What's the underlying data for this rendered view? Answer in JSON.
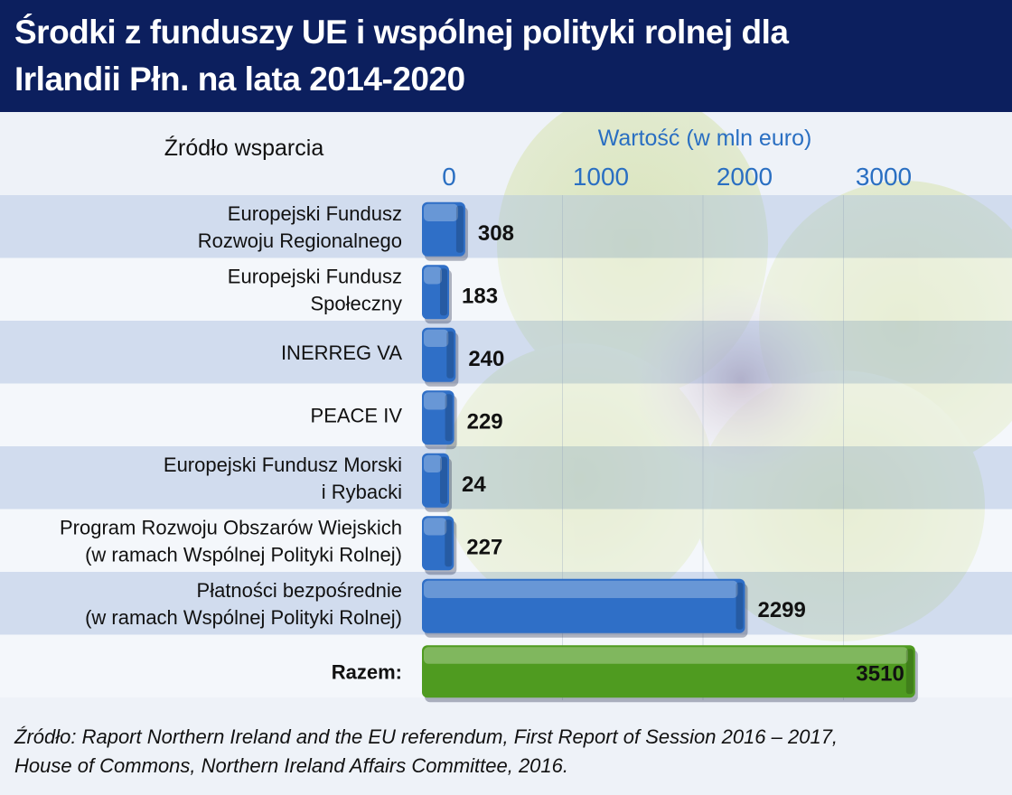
{
  "header": {
    "title_line1": "Środki z funduszy UE i wspólnej polityki rolnej dla",
    "title_line2": "Irlandii Płn. na lata 2014-2020"
  },
  "footer": {
    "source_line1": "Źródło: Raport Northern Ireland and the EU referendum, First Report of Session 2016 – 2017,",
    "source_line2": "House of Commons, Northern Ireland Affairs Committee, 2016."
  },
  "colors": {
    "header_bg": "#0c1f5e",
    "bar_blue": "#2f6fc7",
    "bar_green": "#4f9b20",
    "axis_text": "#2a6fc2"
  },
  "chart_data": {
    "type": "bar",
    "orientation": "horizontal",
    "title": "Środki z funduszy UE i wspólnej polityki rolnej dla Irlandii Płn. na lata 2014-2020",
    "category_header": "Źródło wsparcia",
    "value_axis_label": "Wartość (w mln euro)",
    "xticks": [
      "0",
      "1000",
      "2000",
      "3000"
    ],
    "xlim": [
      0,
      3500
    ],
    "grid": true,
    "categories": [
      [
        "Europejski Fundusz",
        "Rozwoju Regionalnego"
      ],
      [
        "Europejski Fundusz",
        "Społeczny"
      ],
      [
        "INERREG VA"
      ],
      [
        "PEACE IV"
      ],
      [
        "Europejski Fundusz Morski",
        "i Rybacki"
      ],
      [
        "Program Rozwoju Obszarów Wiejskich",
        "(w ramach Wspólnej Polityki Rolnej)"
      ],
      [
        "Płatności bezpośrednie",
        "(w ramach Wspólnej Polityki Rolnej)"
      ],
      [
        "Razem:"
      ]
    ],
    "values": [
      308,
      183,
      240,
      229,
      24,
      227,
      2299,
      3510
    ],
    "value_labels": [
      "308",
      "183",
      "240",
      "229",
      "24",
      "227",
      "2299",
      "3510"
    ]
  }
}
